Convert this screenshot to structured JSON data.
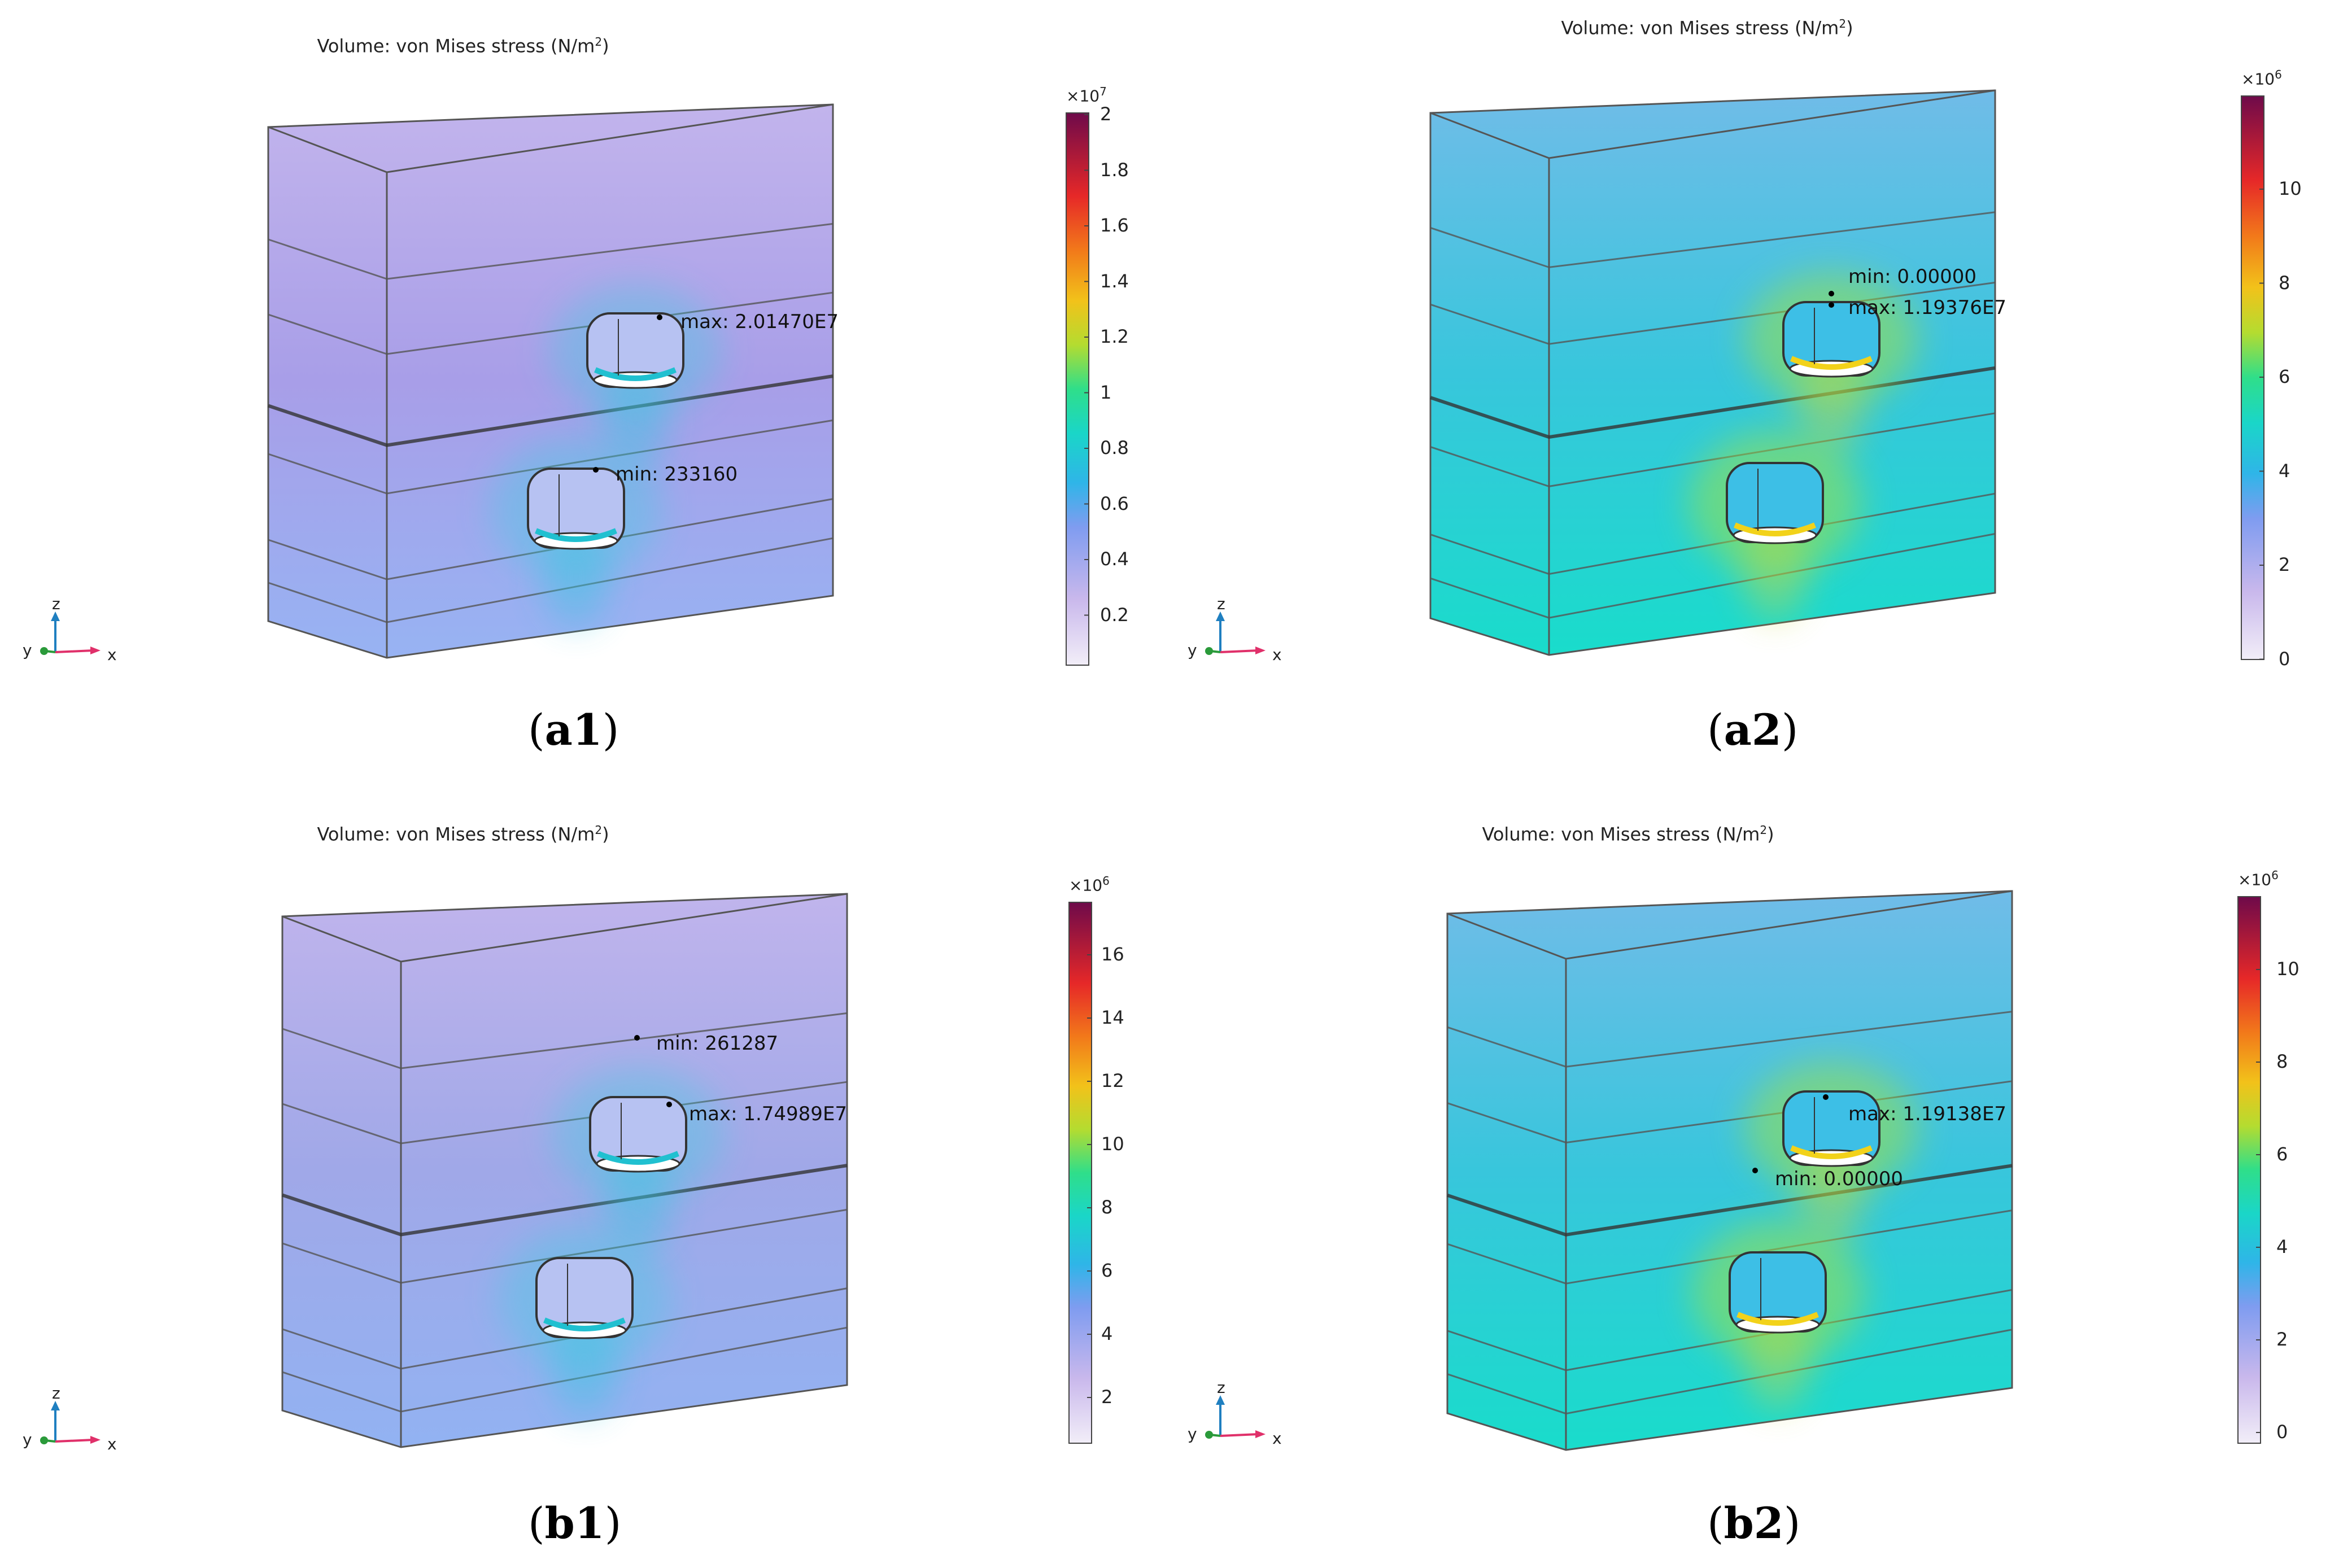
{
  "panels": [
    {
      "id": "a1",
      "title": "Volume: von Mises stress (N/m",
      "title_sup": "2",
      "title_end": ")",
      "label_bold": "a1",
      "colorbar": {
        "multiplier": "×10",
        "exp": "7",
        "ticks": [
          "2",
          "1.8",
          "1.6",
          "1.4",
          "1.2",
          "1",
          "0.8",
          "0.6",
          "0.4",
          "0.2"
        ],
        "min": 0,
        "max": 2.01
      },
      "annotations": {
        "max": "max: 2.01470E7",
        "min": "min: 233160"
      },
      "axes": {
        "x": "x",
        "y": "y",
        "z": "z"
      },
      "colors": {
        "box": "#a89ee8",
        "top": "#c2b4ec",
        "bottom": "#97b3f3"
      }
    },
    {
      "id": "a2",
      "title": "Volume: von Mises stress (N/m",
      "title_sup": "2",
      "title_end": ")",
      "label_bold": "a2",
      "colorbar": {
        "multiplier": "×10",
        "exp": "6",
        "ticks": [
          "10",
          "8",
          "6",
          "4",
          "2",
          "0"
        ],
        "min": 0,
        "max": 11.9
      },
      "annotations": {
        "min": "min: 0.00000",
        "max": "max: 1.19376E7"
      },
      "axes": {
        "x": "x",
        "y": "y",
        "z": "z"
      },
      "colors": {
        "box": "#38c6dc",
        "top": "#70bce8",
        "bottom": "#19dccb"
      }
    },
    {
      "id": "b1",
      "title": "Volume: von Mises stress (N/m",
      "title_sup": "2",
      "title_end": ")",
      "label_bold": "b1",
      "colorbar": {
        "multiplier": "×10",
        "exp": "6",
        "ticks": [
          "16",
          "14",
          "12",
          "10",
          "8",
          "6",
          "4",
          "2"
        ],
        "min": 0,
        "max": 17.5
      },
      "annotations": {
        "min": "min: 261287",
        "max": "max: 1.74989E7"
      },
      "axes": {
        "x": "x",
        "y": "y",
        "z": "z"
      },
      "colors": {
        "box": "#a0a8e8",
        "top": "#c0b4ec",
        "bottom": "#92b2f2"
      }
    },
    {
      "id": "b2",
      "title": "Volume: von Mises stress (N/m",
      "title_sup": "2",
      "title_end": ")",
      "label_bold": "b2",
      "colorbar": {
        "multiplier": "×10",
        "exp": "6",
        "ticks": [
          "10",
          "8",
          "6",
          "4",
          "2",
          "0"
        ],
        "min": 0,
        "max": 11.9
      },
      "annotations": {
        "max": "max: 1.19138E7",
        "min": "min: 0.00000"
      },
      "axes": {
        "x": "x",
        "y": "y",
        "z": "z"
      },
      "colors": {
        "box": "#38c6dc",
        "top": "#70bce8",
        "bottom": "#19dccb"
      }
    }
  ]
}
